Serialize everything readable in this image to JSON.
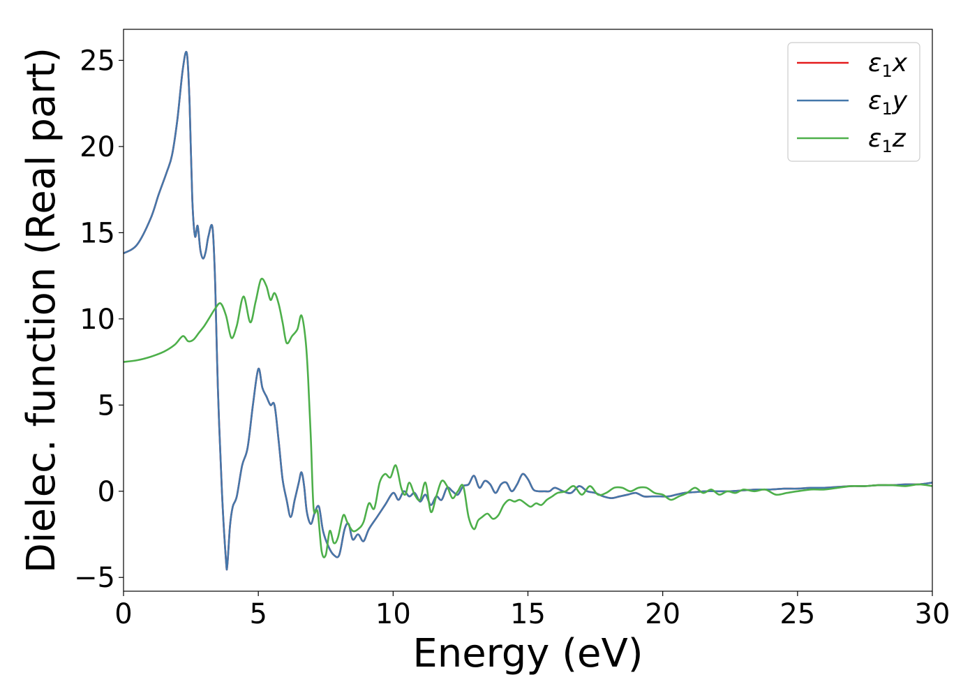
{
  "chart_data": {
    "type": "line",
    "xlabel": "Energy (eV)",
    "ylabel": "Dielec. function (Real part)",
    "xlim": [
      0,
      30
    ],
    "ylim": [
      -5.8,
      26.8
    ],
    "xticks": [
      0,
      5,
      10,
      15,
      20,
      25,
      30
    ],
    "xtick_labels": [
      "0",
      "5",
      "10",
      "15",
      "20",
      "25",
      "30"
    ],
    "yticks": [
      -5,
      0,
      5,
      10,
      15,
      20,
      25
    ],
    "ytick_labels": [
      "−5",
      "0",
      "5",
      "10",
      "15",
      "20",
      "25"
    ],
    "grid": false,
    "legend_position": "top-right",
    "series": [
      {
        "name": "ε₁x",
        "name_parts": [
          "ε",
          "1",
          "x"
        ],
        "color": "#e41a1c",
        "x": [
          0,
          0.5,
          1.0,
          1.3,
          1.6,
          1.8,
          2.0,
          2.2,
          2.35,
          2.45,
          2.55,
          2.65,
          2.75,
          2.85,
          2.95,
          3.05,
          3.15,
          3.3,
          3.4,
          3.5,
          3.65,
          3.8,
          3.85,
          3.95,
          4.05,
          4.2,
          4.4,
          4.6,
          4.8,
          5.0,
          5.15,
          5.3,
          5.45,
          5.6,
          5.75,
          5.9,
          6.05,
          6.2,
          6.35,
          6.5,
          6.6,
          6.7,
          6.8,
          6.95,
          7.1,
          7.25,
          7.4,
          7.6,
          7.8,
          8.0,
          8.2,
          8.35,
          8.5,
          8.7,
          8.9,
          9.1,
          9.4,
          9.7,
          10.0,
          10.2,
          10.4,
          10.6,
          10.8,
          11.0,
          11.2,
          11.4,
          11.6,
          11.8,
          12.0,
          12.2,
          12.4,
          12.6,
          12.8,
          13.0,
          13.2,
          13.4,
          13.6,
          13.8,
          14.0,
          14.2,
          14.4,
          14.6,
          14.8,
          15.0,
          15.2,
          15.4,
          15.6,
          15.8,
          16.0,
          16.3,
          16.6,
          16.9,
          17.2,
          17.5,
          17.8,
          18.1,
          18.4,
          18.7,
          19.0,
          19.3,
          19.6,
          19.9,
          20.2,
          20.5,
          20.8,
          21.2,
          21.6,
          22.0,
          22.5,
          23.0,
          23.5,
          24.0,
          24.5,
          25.0,
          25.5,
          26.0,
          26.5,
          27.0,
          27.5,
          28.0,
          28.5,
          29.0,
          29.5,
          30.0
        ],
        "y": [
          13.8,
          14.3,
          15.8,
          17.2,
          18.5,
          19.5,
          21.6,
          24.5,
          25.4,
          22.5,
          17.0,
          14.8,
          15.4,
          14.0,
          13.5,
          13.9,
          14.8,
          15.3,
          12.0,
          6.0,
          0.0,
          -4.0,
          -4.3,
          -2.0,
          -0.9,
          -0.3,
          1.5,
          2.5,
          5.0,
          7.1,
          6.0,
          5.5,
          5.0,
          5.0,
          3.0,
          0.7,
          -0.5,
          -1.5,
          -0.5,
          0.5,
          1.1,
          0.3,
          -1.2,
          -1.9,
          -1.2,
          -0.9,
          -2.3,
          -3.2,
          -3.7,
          -3.7,
          -2.2,
          -1.9,
          -2.8,
          -2.5,
          -2.9,
          -2.2,
          -1.5,
          -0.8,
          -0.1,
          -0.5,
          0.0,
          -0.3,
          -0.1,
          -0.6,
          -0.2,
          -0.8,
          -0.3,
          -0.5,
          0.2,
          0.0,
          -0.2,
          0.3,
          0.4,
          0.9,
          0.2,
          0.6,
          0.4,
          -0.1,
          0.4,
          0.5,
          0.0,
          0.4,
          1.0,
          0.7,
          0.1,
          0.0,
          0.0,
          0.0,
          0.2,
          0.0,
          -0.1,
          0.3,
          0.0,
          -0.1,
          -0.3,
          -0.4,
          -0.3,
          -0.2,
          -0.1,
          -0.3,
          -0.3,
          -0.3,
          -0.3,
          -0.2,
          -0.1,
          -0.05,
          0.0,
          0.0,
          0.0,
          0.05,
          0.1,
          0.1,
          0.15,
          0.15,
          0.2,
          0.2,
          0.25,
          0.3,
          0.3,
          0.35,
          0.35,
          0.4,
          0.4,
          0.5
        ]
      },
      {
        "name": "ε₁y",
        "name_parts": [
          "ε",
          "1",
          "y"
        ],
        "color": "#4477aa",
        "x": [
          0,
          0.5,
          1.0,
          1.3,
          1.6,
          1.8,
          2.0,
          2.2,
          2.35,
          2.45,
          2.55,
          2.65,
          2.75,
          2.85,
          2.95,
          3.05,
          3.15,
          3.3,
          3.4,
          3.5,
          3.65,
          3.8,
          3.85,
          3.95,
          4.05,
          4.2,
          4.4,
          4.6,
          4.8,
          5.0,
          5.15,
          5.3,
          5.45,
          5.6,
          5.75,
          5.9,
          6.05,
          6.2,
          6.35,
          6.5,
          6.6,
          6.7,
          6.8,
          6.95,
          7.1,
          7.25,
          7.4,
          7.6,
          7.8,
          8.0,
          8.2,
          8.35,
          8.5,
          8.7,
          8.9,
          9.1,
          9.4,
          9.7,
          10.0,
          10.2,
          10.4,
          10.6,
          10.8,
          11.0,
          11.2,
          11.4,
          11.6,
          11.8,
          12.0,
          12.2,
          12.4,
          12.6,
          12.8,
          13.0,
          13.2,
          13.4,
          13.6,
          13.8,
          14.0,
          14.2,
          14.4,
          14.6,
          14.8,
          15.0,
          15.2,
          15.4,
          15.6,
          15.8,
          16.0,
          16.3,
          16.6,
          16.9,
          17.2,
          17.5,
          17.8,
          18.1,
          18.4,
          18.7,
          19.0,
          19.3,
          19.6,
          19.9,
          20.2,
          20.5,
          20.8,
          21.2,
          21.6,
          22.0,
          22.5,
          23.0,
          23.5,
          24.0,
          24.5,
          25.0,
          25.5,
          26.0,
          26.5,
          27.0,
          27.5,
          28.0,
          28.5,
          29.0,
          29.5,
          30.0
        ],
        "y": [
          13.8,
          14.3,
          15.8,
          17.2,
          18.5,
          19.5,
          21.6,
          24.5,
          25.4,
          22.5,
          17.0,
          14.8,
          15.4,
          14.0,
          13.5,
          13.9,
          14.8,
          15.3,
          12.0,
          6.0,
          0.0,
          -4.0,
          -4.3,
          -2.0,
          -0.9,
          -0.3,
          1.5,
          2.5,
          5.0,
          7.1,
          6.0,
          5.5,
          5.0,
          5.0,
          3.0,
          0.7,
          -0.5,
          -1.5,
          -0.5,
          0.5,
          1.1,
          0.3,
          -1.2,
          -1.9,
          -1.2,
          -0.9,
          -2.3,
          -3.2,
          -3.7,
          -3.7,
          -2.2,
          -1.9,
          -2.8,
          -2.5,
          -2.9,
          -2.2,
          -1.5,
          -0.8,
          -0.1,
          -0.5,
          0.0,
          -0.3,
          -0.1,
          -0.6,
          -0.2,
          -0.8,
          -0.3,
          -0.5,
          0.2,
          0.0,
          -0.2,
          0.3,
          0.4,
          0.9,
          0.2,
          0.6,
          0.4,
          -0.1,
          0.4,
          0.5,
          0.0,
          0.4,
          1.0,
          0.7,
          0.1,
          0.0,
          0.0,
          0.0,
          0.2,
          0.0,
          -0.1,
          0.3,
          0.0,
          -0.1,
          -0.3,
          -0.4,
          -0.3,
          -0.2,
          -0.1,
          -0.3,
          -0.3,
          -0.3,
          -0.3,
          -0.2,
          -0.1,
          -0.05,
          0.0,
          0.0,
          0.0,
          0.05,
          0.1,
          0.1,
          0.15,
          0.15,
          0.2,
          0.2,
          0.25,
          0.3,
          0.3,
          0.35,
          0.35,
          0.4,
          0.4,
          0.5
        ]
      },
      {
        "name": "ε₁z",
        "name_parts": [
          "ε",
          "1",
          "z"
        ],
        "color": "#4daf4a",
        "x": [
          0,
          0.5,
          1.0,
          1.5,
          1.9,
          2.2,
          2.4,
          2.6,
          2.8,
          3.0,
          3.2,
          3.4,
          3.6,
          3.8,
          4.0,
          4.2,
          4.45,
          4.7,
          4.9,
          5.1,
          5.3,
          5.45,
          5.6,
          5.75,
          5.9,
          6.05,
          6.25,
          6.45,
          6.6,
          6.75,
          6.85,
          6.95,
          7.05,
          7.2,
          7.35,
          7.5,
          7.65,
          7.8,
          7.95,
          8.15,
          8.3,
          8.5,
          8.7,
          8.9,
          9.1,
          9.3,
          9.5,
          9.7,
          9.9,
          10.1,
          10.3,
          10.45,
          10.6,
          10.8,
          11.0,
          11.2,
          11.4,
          11.6,
          11.8,
          12.0,
          12.2,
          12.4,
          12.6,
          12.8,
          13.0,
          13.15,
          13.3,
          13.5,
          13.7,
          13.9,
          14.1,
          14.3,
          14.5,
          14.7,
          14.9,
          15.1,
          15.3,
          15.5,
          15.7,
          15.9,
          16.1,
          16.4,
          16.7,
          17.0,
          17.3,
          17.6,
          17.9,
          18.2,
          18.5,
          18.8,
          19.1,
          19.4,
          19.7,
          20.0,
          20.3,
          20.6,
          20.9,
          21.2,
          21.5,
          21.8,
          22.1,
          22.4,
          22.7,
          23.0,
          23.4,
          23.8,
          24.2,
          24.6,
          25.0,
          25.5,
          26.0,
          26.5,
          27.0,
          27.5,
          28.0,
          28.5,
          29.0,
          29.5,
          30.0
        ],
        "y": [
          7.5,
          7.6,
          7.8,
          8.1,
          8.5,
          9.0,
          8.7,
          8.8,
          9.2,
          9.6,
          10.1,
          10.6,
          10.9,
          10.2,
          8.9,
          9.6,
          11.3,
          9.8,
          11.0,
          12.3,
          11.9,
          11.1,
          11.5,
          10.9,
          9.8,
          8.6,
          9.0,
          9.4,
          10.2,
          8.8,
          6.5,
          3.0,
          -1.0,
          -1.2,
          -3.5,
          -3.7,
          -2.3,
          -3.0,
          -2.7,
          -1.4,
          -1.8,
          -2.3,
          -2.2,
          -1.8,
          -0.7,
          -1.0,
          0.5,
          1.0,
          0.8,
          1.5,
          0.2,
          -0.2,
          0.5,
          -0.2,
          -0.5,
          0.5,
          -1.2,
          -0.3,
          0.6,
          0.3,
          -0.4,
          0.0,
          0.3,
          -1.5,
          -2.2,
          -1.7,
          -1.5,
          -1.3,
          -1.6,
          -1.4,
          -0.8,
          -0.5,
          -0.6,
          -0.5,
          -0.7,
          -0.9,
          -0.7,
          -0.8,
          -0.5,
          -0.3,
          -0.1,
          0.0,
          0.3,
          -0.2,
          0.3,
          -0.2,
          -0.1,
          0.2,
          0.2,
          0.0,
          0.2,
          0.2,
          -0.1,
          -0.2,
          -0.5,
          -0.3,
          -0.1,
          0.2,
          -0.1,
          0.1,
          -0.2,
          0.0,
          -0.1,
          0.1,
          0.0,
          0.1,
          -0.2,
          -0.1,
          0.0,
          0.1,
          0.1,
          0.2,
          0.3,
          0.3,
          0.35,
          0.35,
          0.3,
          0.4,
          0.3
        ]
      }
    ]
  }
}
